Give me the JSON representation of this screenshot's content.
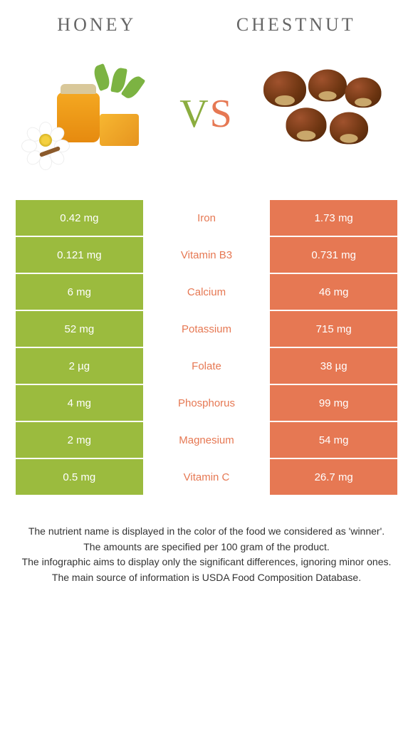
{
  "header": {
    "left_title": "HONEY",
    "right_title": "Chestnut",
    "vs_v": "V",
    "vs_s": "S"
  },
  "colors": {
    "left_bg": "#9bbb3e",
    "right_bg": "#e67853",
    "left_text": "#ffffff",
    "right_text": "#ffffff",
    "mid_left_color": "#9bbb3e",
    "mid_right_color": "#e67853"
  },
  "rows": [
    {
      "left": "0.42 mg",
      "label": "Iron",
      "right": "1.73 mg",
      "winner": "right"
    },
    {
      "left": "0.121 mg",
      "label": "Vitamin B3",
      "right": "0.731 mg",
      "winner": "right"
    },
    {
      "left": "6 mg",
      "label": "Calcium",
      "right": "46 mg",
      "winner": "right"
    },
    {
      "left": "52 mg",
      "label": "Potassium",
      "right": "715 mg",
      "winner": "right"
    },
    {
      "left": "2 µg",
      "label": "Folate",
      "right": "38 µg",
      "winner": "right"
    },
    {
      "left": "4 mg",
      "label": "Phosphorus",
      "right": "99 mg",
      "winner": "right"
    },
    {
      "left": "2 mg",
      "label": "Magnesium",
      "right": "54 mg",
      "winner": "right"
    },
    {
      "left": "0.5 mg",
      "label": "Vitamin C",
      "right": "26.7 mg",
      "winner": "right"
    }
  ],
  "footer": {
    "l1": "The nutrient name is displayed in the color of the food we considered as 'winner'.",
    "l2": "The amounts are specified per 100 gram of the product.",
    "l3": "The infographic aims to display only the significant differences, ignoring minor ones.",
    "l4": "The main source of information is USDA Food Composition Database."
  }
}
